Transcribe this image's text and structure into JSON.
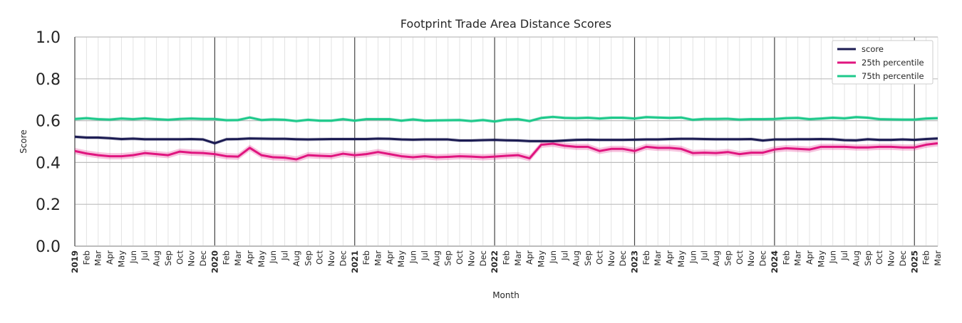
{
  "chart_data": {
    "type": "line",
    "title": "Footprint Trade Area Distance Scores",
    "xlabel": "Month",
    "ylabel": "Score",
    "ylim": [
      0,
      1
    ],
    "yticks": [
      "0.0",
      "0.2",
      "0.4",
      "0.6",
      "0.8",
      "1.0"
    ],
    "grid": true,
    "legend_position": "top-right",
    "x_start": "2019-01",
    "month_labels": [
      "Feb",
      "Mar",
      "Apr",
      "May",
      "Jun",
      "Jul",
      "Aug",
      "Sep",
      "Oct",
      "Nov",
      "Dec"
    ],
    "years": [
      "2019",
      "2020",
      "2021",
      "2022",
      "2023",
      "2024",
      "2025"
    ],
    "series": [
      {
        "name": "score",
        "color": "#1b1b52",
        "band": 0.008,
        "values": [
          0.523,
          0.519,
          0.519,
          0.516,
          0.512,
          0.514,
          0.511,
          0.511,
          0.511,
          0.511,
          0.512,
          0.51,
          0.492,
          0.511,
          0.512,
          0.515,
          0.514,
          0.513,
          0.513,
          0.511,
          0.51,
          0.511,
          0.512,
          0.512,
          0.512,
          0.512,
          0.514,
          0.513,
          0.51,
          0.509,
          0.51,
          0.51,
          0.51,
          0.505,
          0.505,
          0.507,
          0.508,
          0.506,
          0.505,
          0.502,
          0.502,
          0.502,
          0.505,
          0.508,
          0.509,
          0.508,
          0.508,
          0.508,
          0.509,
          0.51,
          0.51,
          0.512,
          0.513,
          0.513,
          0.512,
          0.511,
          0.511,
          0.511,
          0.512,
          0.505,
          0.51,
          0.51,
          0.511,
          0.511,
          0.512,
          0.511,
          0.507,
          0.506,
          0.511,
          0.508,
          0.508,
          0.51,
          0.508,
          0.512,
          0.515
        ]
      },
      {
        "name": "25th percentile",
        "color": "#e0157f",
        "band": 0.015,
        "values": [
          0.455,
          0.443,
          0.435,
          0.43,
          0.43,
          0.435,
          0.445,
          0.44,
          0.435,
          0.452,
          0.447,
          0.445,
          0.44,
          0.43,
          0.428,
          0.47,
          0.435,
          0.425,
          0.423,
          0.415,
          0.435,
          0.432,
          0.43,
          0.442,
          0.435,
          0.44,
          0.45,
          0.44,
          0.43,
          0.425,
          0.43,
          0.425,
          0.427,
          0.43,
          0.428,
          0.425,
          0.428,
          0.432,
          0.435,
          0.42,
          0.485,
          0.49,
          0.48,
          0.475,
          0.475,
          0.455,
          0.465,
          0.465,
          0.455,
          0.475,
          0.47,
          0.47,
          0.465,
          0.445,
          0.447,
          0.445,
          0.45,
          0.44,
          0.447,
          0.447,
          0.462,
          0.468,
          0.465,
          0.462,
          0.475,
          0.475,
          0.475,
          0.472,
          0.472,
          0.475,
          0.475,
          0.472,
          0.472,
          0.485,
          0.492
        ]
      },
      {
        "name": "75th percentile",
        "color": "#1ec98b",
        "band": 0.008,
        "values": [
          0.608,
          0.612,
          0.607,
          0.605,
          0.61,
          0.607,
          0.611,
          0.607,
          0.604,
          0.608,
          0.61,
          0.608,
          0.608,
          0.602,
          0.603,
          0.615,
          0.603,
          0.606,
          0.604,
          0.598,
          0.604,
          0.6,
          0.6,
          0.607,
          0.6,
          0.607,
          0.607,
          0.607,
          0.6,
          0.606,
          0.6,
          0.601,
          0.602,
          0.603,
          0.598,
          0.603,
          0.596,
          0.605,
          0.607,
          0.598,
          0.613,
          0.618,
          0.613,
          0.612,
          0.614,
          0.61,
          0.614,
          0.614,
          0.61,
          0.617,
          0.615,
          0.613,
          0.615,
          0.604,
          0.608,
          0.608,
          0.609,
          0.605,
          0.607,
          0.607,
          0.608,
          0.612,
          0.613,
          0.607,
          0.61,
          0.614,
          0.611,
          0.617,
          0.614,
          0.607,
          0.606,
          0.605,
          0.605,
          0.61,
          0.612
        ]
      }
    ]
  }
}
